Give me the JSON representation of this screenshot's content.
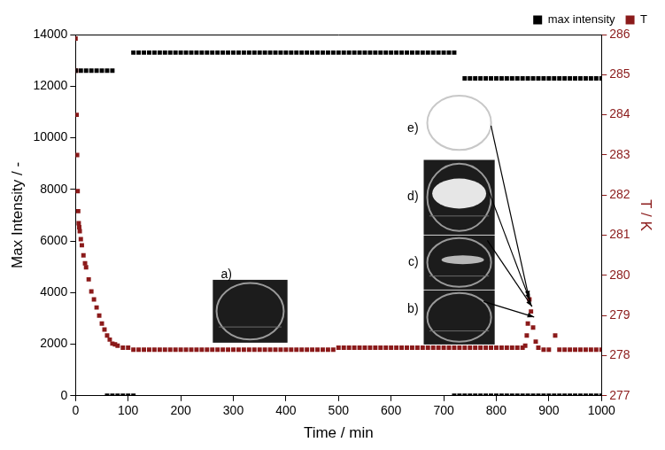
{
  "chart_data": {
    "type": "scatter",
    "x_label": "Time / min",
    "y_label": "Max Intensity / -",
    "y2_label": "T / K",
    "xlim": [
      0,
      1000
    ],
    "xticks": [
      0,
      100,
      200,
      300,
      400,
      500,
      600,
      700,
      800,
      900,
      1000
    ],
    "ylim": [
      0,
      14000
    ],
    "yticks": [
      0,
      2000,
      4000,
      6000,
      8000,
      10000,
      12000,
      14000
    ],
    "y2lim": [
      277,
      286
    ],
    "y2ticks": [
      277,
      278,
      279,
      280,
      281,
      282,
      283,
      284,
      285,
      286
    ],
    "grid": false,
    "legend": "top right",
    "marker": "square",
    "annotations": [
      "a)",
      "b)",
      "c)",
      "d)",
      "e)"
    ],
    "series": [
      {
        "name": "max intensity",
        "color": "#000000",
        "marker": "square",
        "x": [
          0,
          10,
          20,
          30,
          40,
          50,
          60,
          70,
          60,
          70,
          80,
          90,
          100,
          110,
          110,
          120,
          130,
          140,
          150,
          160,
          170,
          180,
          190,
          200,
          210,
          220,
          230,
          240,
          250,
          260,
          270,
          280,
          290,
          300,
          310,
          320,
          330,
          340,
          350,
          360,
          370,
          380,
          390,
          400,
          410,
          420,
          430,
          440,
          450,
          460,
          470,
          480,
          490,
          500,
          510,
          520,
          530,
          540,
          550,
          560,
          570,
          580,
          590,
          600,
          610,
          620,
          630,
          640,
          650,
          660,
          670,
          680,
          690,
          700,
          710,
          720,
          720,
          730,
          740,
          750,
          760,
          770,
          780,
          790,
          800,
          810,
          820,
          830,
          840,
          850,
          860,
          870,
          880,
          890,
          900,
          910,
          920,
          930,
          940,
          950,
          960,
          970,
          980,
          990,
          1000,
          740,
          750,
          760,
          770,
          780,
          790,
          800,
          810,
          820,
          830,
          840,
          850,
          860,
          870,
          880,
          890,
          900,
          910,
          920,
          930,
          940,
          950,
          960,
          970,
          980,
          990,
          1000
        ],
        "values": [
          12600,
          12600,
          12600,
          12600,
          12600,
          12600,
          12600,
          12600,
          0,
          0,
          0,
          0,
          0,
          0,
          13300,
          13300,
          13300,
          13300,
          13300,
          13300,
          13300,
          13300,
          13300,
          13300,
          13300,
          13300,
          13300,
          13300,
          13300,
          13300,
          13300,
          13300,
          13300,
          13300,
          13300,
          13300,
          13300,
          13300,
          13300,
          13300,
          13300,
          13300,
          13300,
          13300,
          13300,
          13300,
          13300,
          13300,
          13300,
          13300,
          13300,
          13300,
          13300,
          13300,
          13300,
          13300,
          13300,
          13300,
          13300,
          13300,
          13300,
          13300,
          13300,
          13300,
          13300,
          13300,
          13300,
          13300,
          13300,
          13300,
          13300,
          13300,
          13300,
          13300,
          13300,
          13300,
          0,
          0,
          0,
          0,
          0,
          0,
          0,
          0,
          0,
          0,
          0,
          0,
          0,
          0,
          0,
          0,
          0,
          0,
          0,
          0,
          0,
          0,
          0,
          0,
          0,
          0,
          0,
          0,
          0,
          12300,
          12300,
          12300,
          12300,
          12300,
          12300,
          12300,
          12300,
          12300,
          12300,
          12300,
          12300,
          12300,
          12300,
          12300,
          12300,
          12300,
          12300,
          12300,
          12300,
          12300,
          12300,
          12300,
          12300,
          12300,
          12300,
          12300
        ]
      },
      {
        "name": "T",
        "color": "#8b1a1a",
        "marker": "square",
        "axis": "y2",
        "x": [
          0,
          1,
          2,
          3,
          4,
          5,
          6,
          7,
          8,
          10,
          12,
          15,
          18,
          20,
          25,
          30,
          35,
          40,
          45,
          50,
          55,
          60,
          65,
          70,
          75,
          80,
          90,
          100,
          110,
          120,
          130,
          140,
          150,
          160,
          170,
          180,
          190,
          200,
          210,
          220,
          230,
          240,
          250,
          260,
          270,
          280,
          290,
          300,
          310,
          320,
          330,
          340,
          350,
          360,
          370,
          380,
          390,
          400,
          410,
          420,
          430,
          440,
          450,
          460,
          470,
          480,
          490,
          500,
          510,
          520,
          530,
          540,
          550,
          560,
          570,
          580,
          590,
          600,
          610,
          620,
          630,
          640,
          650,
          660,
          670,
          680,
          690,
          700,
          710,
          720,
          730,
          740,
          750,
          760,
          770,
          780,
          790,
          800,
          810,
          820,
          830,
          840,
          850,
          855,
          858,
          860,
          863,
          866,
          870,
          875,
          880,
          890,
          900,
          912,
          920,
          930,
          940,
          950,
          960,
          970,
          980,
          990,
          1000
        ],
        "values": [
          285.9,
          285.1,
          284.0,
          283.0,
          282.1,
          281.6,
          281.3,
          281.2,
          281.1,
          280.9,
          280.75,
          280.5,
          280.3,
          280.2,
          279.9,
          279.6,
          279.4,
          279.2,
          279.0,
          278.8,
          278.65,
          278.5,
          278.4,
          278.3,
          278.28,
          278.25,
          278.2,
          278.2,
          278.15,
          278.15,
          278.15,
          278.15,
          278.15,
          278.15,
          278.15,
          278.15,
          278.15,
          278.15,
          278.15,
          278.15,
          278.15,
          278.15,
          278.15,
          278.15,
          278.15,
          278.15,
          278.15,
          278.15,
          278.15,
          278.15,
          278.15,
          278.15,
          278.15,
          278.15,
          278.15,
          278.15,
          278.15,
          278.15,
          278.15,
          278.15,
          278.15,
          278.15,
          278.15,
          278.15,
          278.15,
          278.15,
          278.15,
          278.2,
          278.2,
          278.2,
          278.2,
          278.2,
          278.2,
          278.2,
          278.2,
          278.2,
          278.2,
          278.2,
          278.2,
          278.2,
          278.2,
          278.2,
          278.2,
          278.2,
          278.2,
          278.2,
          278.2,
          278.2,
          278.2,
          278.2,
          278.2,
          278.2,
          278.2,
          278.2,
          278.2,
          278.2,
          278.2,
          278.2,
          278.2,
          278.2,
          278.2,
          278.2,
          278.2,
          278.25,
          278.5,
          278.8,
          279.4,
          279.1,
          278.7,
          278.35,
          278.2,
          278.15,
          278.15,
          278.5,
          278.15,
          278.15,
          278.15,
          278.15,
          278.15,
          278.15,
          278.15,
          278.15,
          278.15
        ]
      }
    ]
  }
}
